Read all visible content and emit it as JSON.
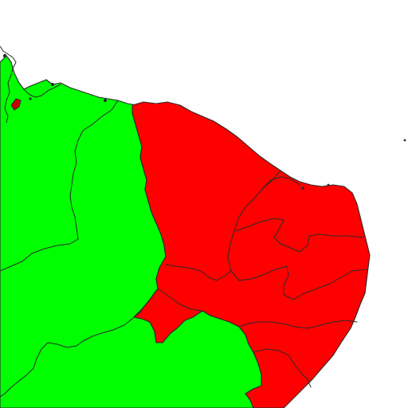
{
  "map": {
    "legend_groups": [
      {
        "id": "green-group",
        "color": "#00ff00"
      },
      {
        "id": "red-group",
        "color": "#ff0000"
      }
    ],
    "background_color": "#ffffff",
    "border_color": "#2a2a2a"
  }
}
